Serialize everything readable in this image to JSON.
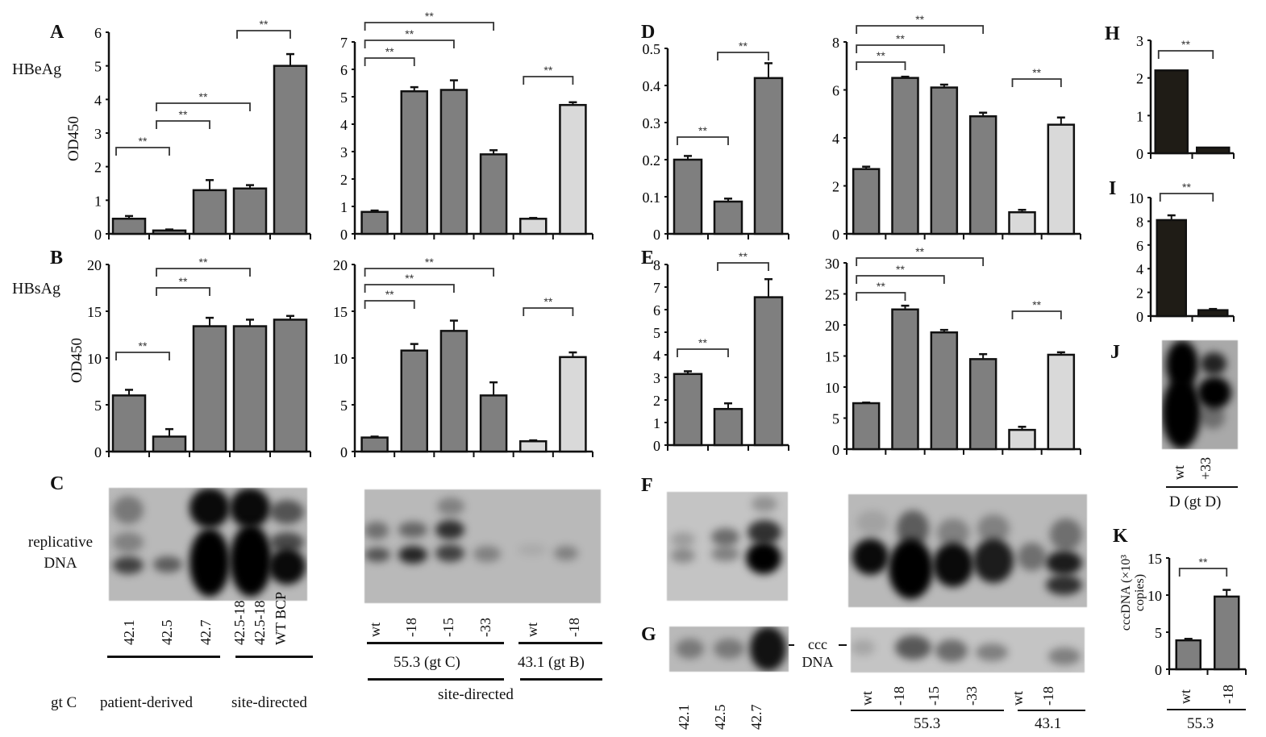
{
  "panel_letters": {
    "A": "A",
    "B": "B",
    "C": "C",
    "D": "D",
    "E": "E",
    "F": "F",
    "G": "G",
    "H": "H",
    "I": "I",
    "J": "J",
    "K": "K"
  },
  "labels": {
    "hbeag": "HBeAg",
    "hbsag": "HBsAg",
    "od450_a": "OD450",
    "od450_b": "OD450",
    "replicative_dna": "replicative DNA",
    "ccc_dna": "ccc DNA",
    "gt_c": "gt C",
    "patient_derived": "patient-derived",
    "site_directed_c_left": "site-directed",
    "group_553_gtc": "55.3 (gt C)",
    "group_431_gtb": "43.1 (gt B)",
    "site_directed_c_right": "site-directed",
    "g_group_553": "55.3",
    "g_group_431": "43.1",
    "j_group": "D (gt D)",
    "k_group": "55.3",
    "k_ylabel": "cccDNA (×10³ copies)"
  },
  "lanes": {
    "c_left": [
      "42.1",
      "42.5",
      "42.7",
      "42.5-18",
      "42.5-18",
      "WT BCP"
    ],
    "c_right": [
      "wt",
      "-18",
      "-15",
      "-33",
      "wt",
      "-18"
    ],
    "g_left": [
      "42.1",
      "42.5",
      "42.7"
    ],
    "g_right": [
      "wt",
      "-18",
      "-15",
      "-33",
      "wt",
      "-18"
    ],
    "j": [
      "wt",
      "+33"
    ],
    "k": [
      "wt",
      "-18"
    ]
  },
  "colors": {
    "bar_dark_gray": "#7f7f7f",
    "bar_light_gray": "#d9d9d9",
    "bar_black": "#1f1c16",
    "blot_bg": "#b9b9b9"
  },
  "chart_data": [
    {
      "id": "A-left",
      "type": "bar",
      "ylabel": "OD450",
      "ylim": [
        0,
        6
      ],
      "yticks": [
        "0",
        "1",
        "2",
        "3",
        "4",
        "5",
        "6"
      ],
      "values": [
        0.45,
        0.1,
        1.3,
        1.35,
        5.0
      ],
      "errors": [
        0.08,
        0.03,
        0.3,
        0.1,
        0.35
      ],
      "fills": [
        "dark",
        "dark",
        "dark",
        "dark",
        "dark"
      ],
      "significance": [
        {
          "from": 0,
          "to": 1,
          "label": "**"
        },
        {
          "from": 1,
          "to": 2,
          "label": "**"
        },
        {
          "from": 1,
          "to": 3,
          "label": "**"
        },
        {
          "from": 3,
          "to": 4,
          "label": "**"
        }
      ]
    },
    {
      "id": "A-right",
      "type": "bar",
      "ylim": [
        0,
        7
      ],
      "yticks": [
        "0",
        "1",
        "2",
        "3",
        "4",
        "5",
        "6",
        "7"
      ],
      "values": [
        0.8,
        5.2,
        5.25,
        2.9,
        0.55,
        4.7
      ],
      "errors": [
        0.05,
        0.15,
        0.35,
        0.15,
        0.03,
        0.1
      ],
      "fills": [
        "dark",
        "dark",
        "dark",
        "dark",
        "light",
        "light"
      ],
      "significance": [
        {
          "from": 0,
          "to": 1,
          "label": "**"
        },
        {
          "from": 0,
          "to": 2,
          "label": "**"
        },
        {
          "from": 0,
          "to": 3,
          "label": "**"
        },
        {
          "from": 4,
          "to": 5,
          "label": "**"
        }
      ]
    },
    {
      "id": "D-left",
      "type": "bar",
      "ylim": [
        0,
        0.5
      ],
      "yticks": [
        "0",
        "0.1",
        "0.2",
        "0.3",
        "0.4",
        "0.5"
      ],
      "values": [
        0.2,
        0.087,
        0.42
      ],
      "errors": [
        0.01,
        0.008,
        0.04
      ],
      "fills": [
        "dark",
        "dark",
        "dark"
      ],
      "significance": [
        {
          "from": 0,
          "to": 1,
          "label": "**"
        },
        {
          "from": 1,
          "to": 2,
          "label": "**"
        }
      ]
    },
    {
      "id": "D-right",
      "type": "bar",
      "ylim": [
        0,
        8
      ],
      "yticks": [
        "0",
        "2",
        "4",
        "6",
        "8"
      ],
      "values": [
        2.7,
        6.5,
        6.1,
        4.9,
        0.9,
        4.55
      ],
      "errors": [
        0.1,
        0.05,
        0.12,
        0.15,
        0.1,
        0.3
      ],
      "fills": [
        "dark",
        "dark",
        "dark",
        "dark",
        "light",
        "light"
      ],
      "significance": [
        {
          "from": 0,
          "to": 1,
          "label": "**"
        },
        {
          "from": 0,
          "to": 2,
          "label": "**"
        },
        {
          "from": 0,
          "to": 3,
          "label": "**"
        },
        {
          "from": 4,
          "to": 5,
          "label": "**"
        }
      ]
    },
    {
      "id": "H",
      "type": "bar",
      "ylim": [
        0,
        3
      ],
      "yticks": [
        "0",
        "1",
        "2",
        "3"
      ],
      "values": [
        2.2,
        0.15
      ],
      "errors": [
        0,
        0
      ],
      "fills": [
        "black",
        "black"
      ],
      "significance": [
        {
          "from": 0,
          "to": 1,
          "label": "**"
        }
      ]
    },
    {
      "id": "I",
      "type": "bar",
      "ylim": [
        0,
        10
      ],
      "yticks": [
        "0",
        "2",
        "4",
        "6",
        "8",
        "10"
      ],
      "values": [
        8.1,
        0.5
      ],
      "errors": [
        0.4,
        0.1
      ],
      "fills": [
        "black",
        "black"
      ],
      "significance": [
        {
          "from": 0,
          "to": 1,
          "label": "**"
        }
      ]
    },
    {
      "id": "B-left",
      "type": "bar",
      "ylabel": "OD450",
      "ylim": [
        0,
        20
      ],
      "yticks": [
        "0",
        "5",
        "10",
        "15",
        "20"
      ],
      "values": [
        6.0,
        1.6,
        13.4,
        13.4,
        14.1
      ],
      "errors": [
        0.6,
        0.8,
        0.9,
        0.7,
        0.4
      ],
      "fills": [
        "dark",
        "dark",
        "dark",
        "dark",
        "dark"
      ],
      "significance": [
        {
          "from": 0,
          "to": 1,
          "label": "**"
        },
        {
          "from": 1,
          "to": 2,
          "label": "**"
        },
        {
          "from": 1,
          "to": 3,
          "label": "**"
        }
      ]
    },
    {
      "id": "B-right",
      "type": "bar",
      "ylim": [
        0,
        20
      ],
      "yticks": [
        "0",
        "5",
        "10",
        "15",
        "20"
      ],
      "values": [
        1.5,
        10.8,
        12.9,
        6.0,
        1.1,
        10.1
      ],
      "errors": [
        0.1,
        0.7,
        1.1,
        1.4,
        0.1,
        0.5
      ],
      "fills": [
        "dark",
        "dark",
        "dark",
        "dark",
        "light",
        "light"
      ],
      "significance": [
        {
          "from": 0,
          "to": 1,
          "label": "**"
        },
        {
          "from": 0,
          "to": 2,
          "label": "**"
        },
        {
          "from": 0,
          "to": 3,
          "label": "**"
        },
        {
          "from": 4,
          "to": 5,
          "label": "**"
        }
      ]
    },
    {
      "id": "E-left",
      "type": "bar",
      "ylim": [
        0,
        8
      ],
      "yticks": [
        "0",
        "1",
        "2",
        "3",
        "4",
        "5",
        "6",
        "7",
        "8"
      ],
      "values": [
        3.15,
        1.6,
        6.55
      ],
      "errors": [
        0.12,
        0.25,
        0.8
      ],
      "fills": [
        "dark",
        "dark",
        "dark"
      ],
      "significance": [
        {
          "from": 0,
          "to": 1,
          "label": "**"
        },
        {
          "from": 1,
          "to": 2,
          "label": "**"
        }
      ]
    },
    {
      "id": "E-right",
      "type": "bar",
      "ylim": [
        0,
        30
      ],
      "yticks": [
        "0",
        "5",
        "10",
        "15",
        "20",
        "25",
        "30"
      ],
      "values": [
        7.4,
        22.5,
        18.8,
        14.5,
        3.1,
        15.2
      ],
      "errors": [
        0.1,
        0.6,
        0.4,
        0.8,
        0.5,
        0.4
      ],
      "fills": [
        "dark",
        "dark",
        "dark",
        "dark",
        "light",
        "light"
      ],
      "significance": [
        {
          "from": 0,
          "to": 1,
          "label": "**"
        },
        {
          "from": 0,
          "to": 2,
          "label": "**"
        },
        {
          "from": 0,
          "to": 3,
          "label": "**"
        },
        {
          "from": 4,
          "to": 5,
          "label": "**"
        }
      ]
    },
    {
      "id": "K",
      "type": "bar",
      "ylabel": "cccDNA (×10³ copies)",
      "ylim": [
        0,
        15
      ],
      "yticks": [
        "0",
        "5",
        "10",
        "15"
      ],
      "categories": [
        "wt",
        "-18"
      ],
      "values": [
        3.9,
        9.8
      ],
      "errors": [
        0.2,
        0.9
      ],
      "fills": [
        "dark",
        "dark"
      ],
      "significance": [
        {
          "from": 0,
          "to": 1,
          "label": "**"
        }
      ]
    }
  ]
}
